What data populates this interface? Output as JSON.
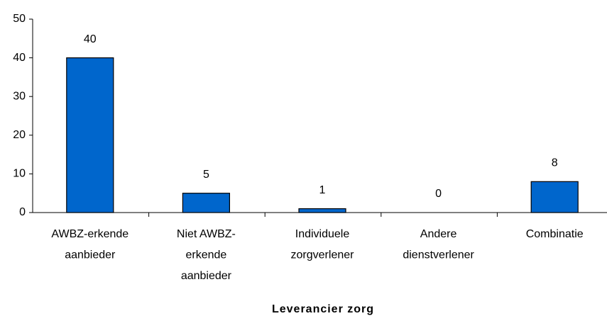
{
  "chart_data": {
    "type": "bar",
    "x_label": "Leverancier zorg",
    "categories": [
      "AWBZ-erkende\naanbieder",
      "Niet AWBZ-\nerkende\naanbieder",
      "Individuele\nzorgverlener",
      "Andere\ndienstverlener",
      "Combinatie"
    ],
    "values": [
      40,
      5,
      1,
      0,
      8
    ],
    "color": "#0066cc",
    "ylim": [
      0,
      50
    ],
    "yticks": [
      0,
      10,
      20,
      30,
      40,
      50
    ],
    "grid": false
  }
}
